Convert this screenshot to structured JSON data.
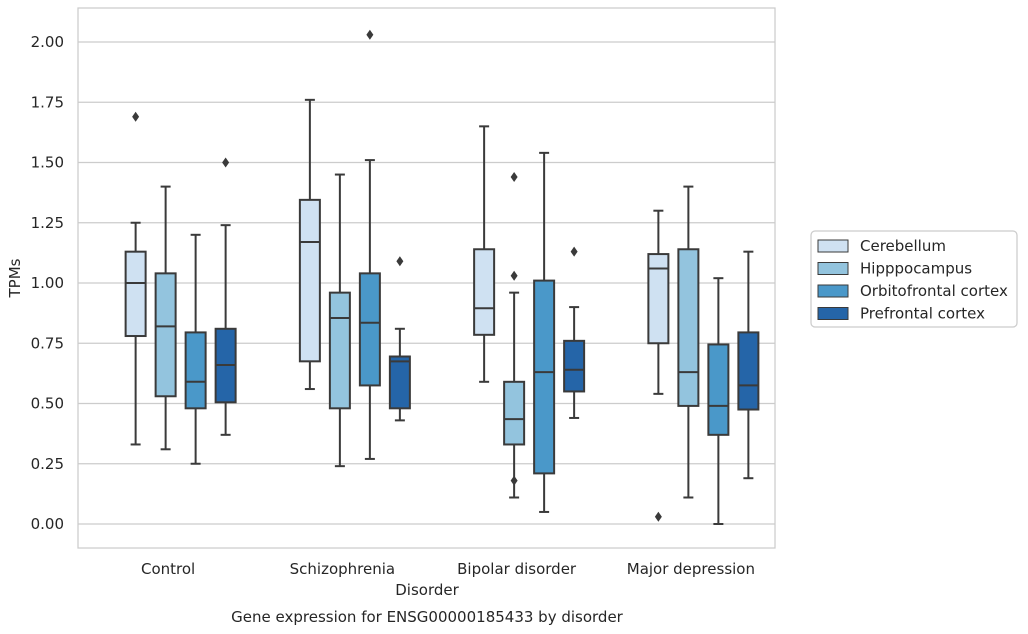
{
  "chart_data": {
    "type": "box",
    "title": "",
    "caption": "Gene expression for ENSG00000185433 by disorder",
    "xlabel": "Disorder",
    "ylabel": "TPMs",
    "ylim": [
      -0.1,
      2.14
    ],
    "yticks": [
      0.0,
      0.25,
      0.5,
      0.75,
      1.0,
      1.25,
      1.5,
      1.75,
      2.0
    ],
    "ytick_labels": [
      "0.00",
      "0.25",
      "0.50",
      "0.75",
      "1.00",
      "1.25",
      "1.50",
      "1.75",
      "2.00"
    ],
    "categories": [
      "Control",
      "Schizophrenia",
      "Bipolar disorder",
      "Major depression"
    ],
    "grid": "horizontal",
    "legend_position": "right",
    "series": [
      {
        "name": "Cerebellum",
        "color": "#cfe1f2",
        "boxes": [
          {
            "whislo": 0.33,
            "q1": 0.78,
            "med": 1.0,
            "q3": 1.13,
            "whishi": 1.25,
            "fliers": [
              1.69
            ]
          },
          {
            "whislo": 0.56,
            "q1": 0.675,
            "med": 1.17,
            "q3": 1.345,
            "whishi": 1.76,
            "fliers": []
          },
          {
            "whislo": 0.59,
            "q1": 0.785,
            "med": 0.895,
            "q3": 1.14,
            "whishi": 1.65,
            "fliers": []
          },
          {
            "whislo": 0.54,
            "q1": 0.75,
            "med": 1.06,
            "q3": 1.12,
            "whishi": 1.3,
            "fliers": [
              0.03
            ]
          }
        ]
      },
      {
        "name": "Hipppocampus",
        "color": "#93c4de",
        "boxes": [
          {
            "whislo": 0.31,
            "q1": 0.53,
            "med": 0.82,
            "q3": 1.04,
            "whishi": 1.4,
            "fliers": []
          },
          {
            "whislo": 0.24,
            "q1": 0.48,
            "med": 0.855,
            "q3": 0.96,
            "whishi": 1.45,
            "fliers": []
          },
          {
            "whislo": 0.11,
            "q1": 0.33,
            "med": 0.435,
            "q3": 0.59,
            "whishi": 0.96,
            "fliers": [
              1.44,
              1.03,
              0.18
            ]
          },
          {
            "whislo": 0.11,
            "q1": 0.49,
            "med": 0.63,
            "q3": 1.14,
            "whishi": 1.4,
            "fliers": []
          }
        ]
      },
      {
        "name": "Orbitofrontal cortex",
        "color": "#4a98c9",
        "boxes": [
          {
            "whislo": 0.25,
            "q1": 0.48,
            "med": 0.59,
            "q3": 0.795,
            "whishi": 1.2,
            "fliers": []
          },
          {
            "whislo": 0.27,
            "q1": 0.575,
            "med": 0.835,
            "q3": 1.04,
            "whishi": 1.51,
            "fliers": [
              2.03
            ]
          },
          {
            "whislo": 0.05,
            "q1": 0.21,
            "med": 0.63,
            "q3": 1.01,
            "whishi": 1.54,
            "fliers": []
          },
          {
            "whislo": 0.0,
            "q1": 0.37,
            "med": 0.49,
            "q3": 0.745,
            "whishi": 1.02,
            "fliers": []
          }
        ]
      },
      {
        "name": "Prefrontal cortex",
        "color": "#2565a8",
        "boxes": [
          {
            "whislo": 0.37,
            "q1": 0.505,
            "med": 0.66,
            "q3": 0.81,
            "whishi": 1.24,
            "fliers": [
              1.5
            ]
          },
          {
            "whislo": 0.43,
            "q1": 0.48,
            "med": 0.675,
            "q3": 0.695,
            "whishi": 0.81,
            "fliers": [
              1.09
            ]
          },
          {
            "whislo": 0.44,
            "q1": 0.55,
            "med": 0.64,
            "q3": 0.76,
            "whishi": 0.9,
            "fliers": [
              1.13
            ]
          },
          {
            "whislo": 0.19,
            "q1": 0.475,
            "med": 0.575,
            "q3": 0.795,
            "whishi": 1.13,
            "fliers": []
          }
        ]
      }
    ]
  }
}
